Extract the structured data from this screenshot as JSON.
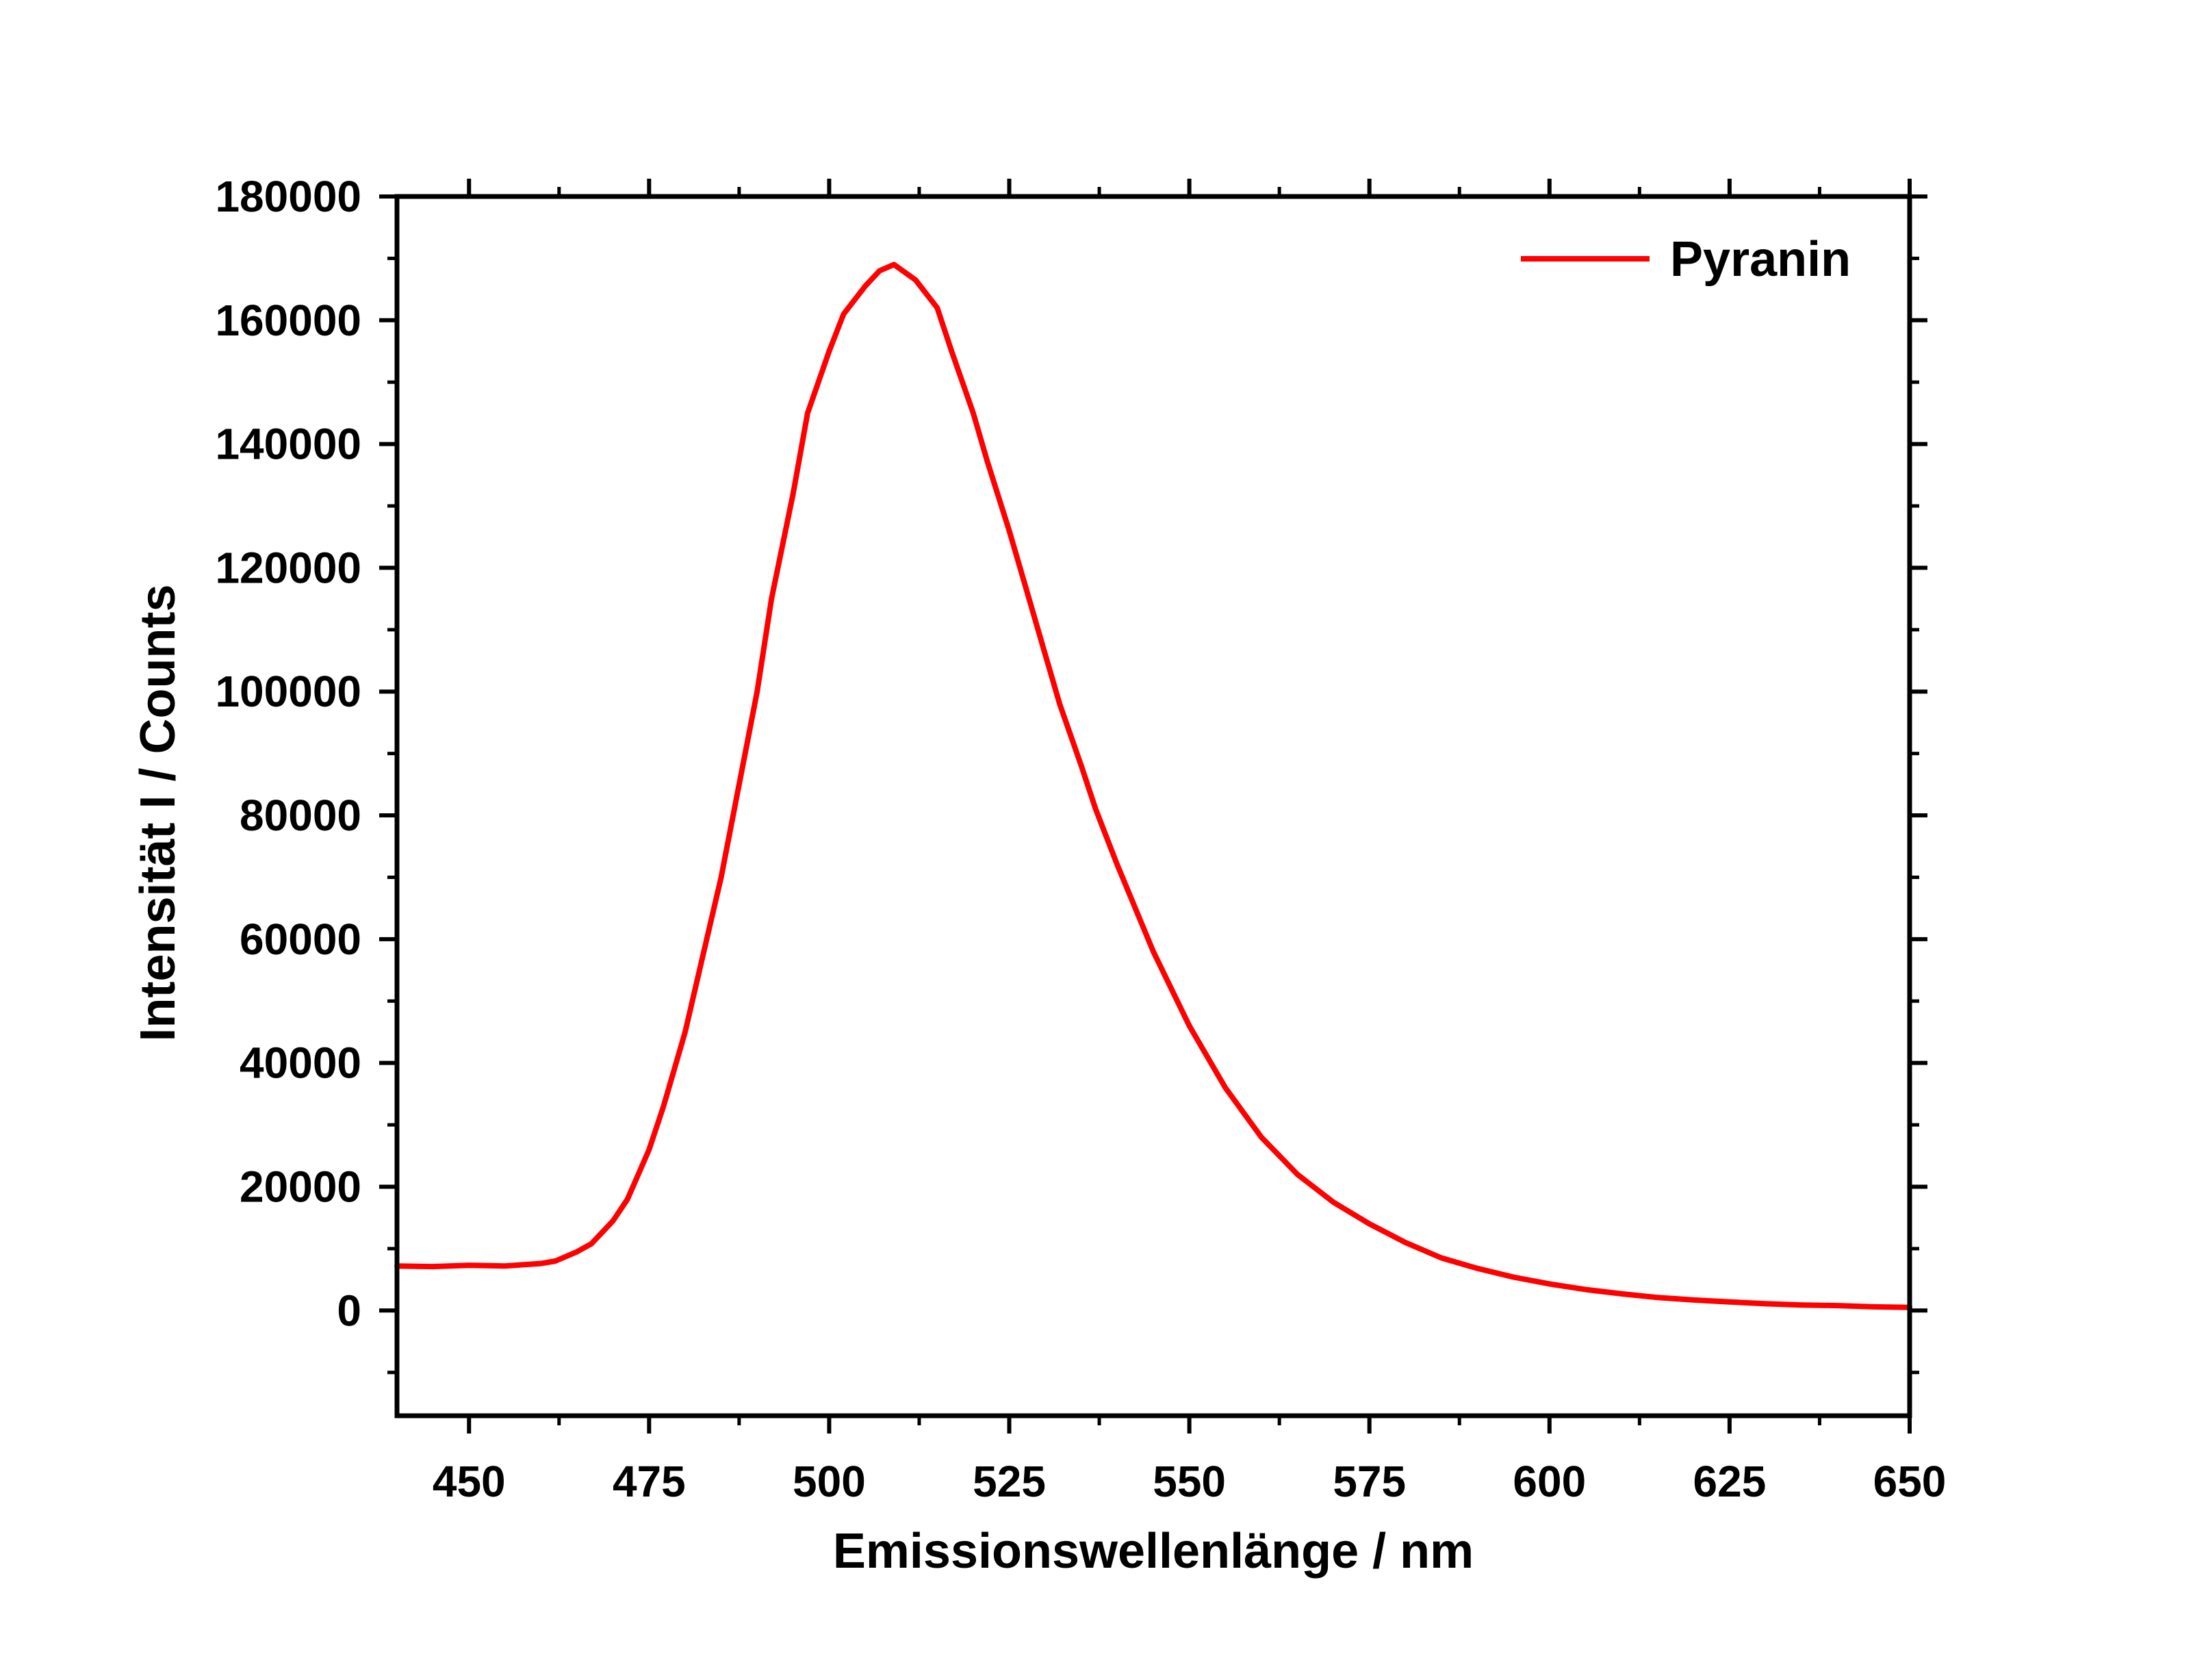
{
  "colors": {
    "series": "#ff0000",
    "axis": "#000000",
    "background": "#ffffff"
  },
  "chart_data": {
    "type": "line",
    "title": "",
    "xlabel": "Emissionswellenlänge / nm",
    "ylabel": "Intensität I / Counts",
    "xlim": [
      440,
      650
    ],
    "ylim": [
      -17000,
      180000
    ],
    "xticks": [
      450,
      475,
      500,
      525,
      550,
      575,
      600,
      625,
      650
    ],
    "yticks": [
      0,
      20000,
      40000,
      60000,
      80000,
      100000,
      120000,
      140000,
      160000,
      180000
    ],
    "grid": false,
    "legend_position": "top-right",
    "series": [
      {
        "name": "Pyranin",
        "x": [
          440,
          445,
          450,
          455,
          460,
          462,
          465,
          467,
          470,
          472,
          475,
          477,
          480,
          482,
          485,
          487,
          490,
          492,
          495,
          497,
          500,
          502,
          505,
          507,
          509,
          512,
          515,
          517,
          520,
          522,
          525,
          527,
          530,
          532,
          535,
          537,
          540,
          545,
          550,
          555,
          560,
          565,
          570,
          575,
          580,
          585,
          590,
          595,
          600,
          605,
          610,
          615,
          620,
          625,
          630,
          635,
          640,
          645,
          650
        ],
        "y": [
          7200,
          7100,
          7300,
          7200,
          7600,
          8000,
          9500,
          10800,
          14500,
          18000,
          26000,
          33000,
          45000,
          55000,
          70000,
          82000,
          100000,
          115000,
          132000,
          145000,
          155000,
          161000,
          165500,
          168000,
          169000,
          166500,
          162000,
          155000,
          145000,
          137000,
          126000,
          118000,
          106000,
          98000,
          88000,
          81000,
          72000,
          58000,
          46000,
          36000,
          28000,
          22000,
          17500,
          14000,
          11000,
          8500,
          6800,
          5400,
          4300,
          3400,
          2700,
          2100,
          1700,
          1400,
          1100,
          900,
          800,
          600,
          500
        ]
      }
    ]
  }
}
